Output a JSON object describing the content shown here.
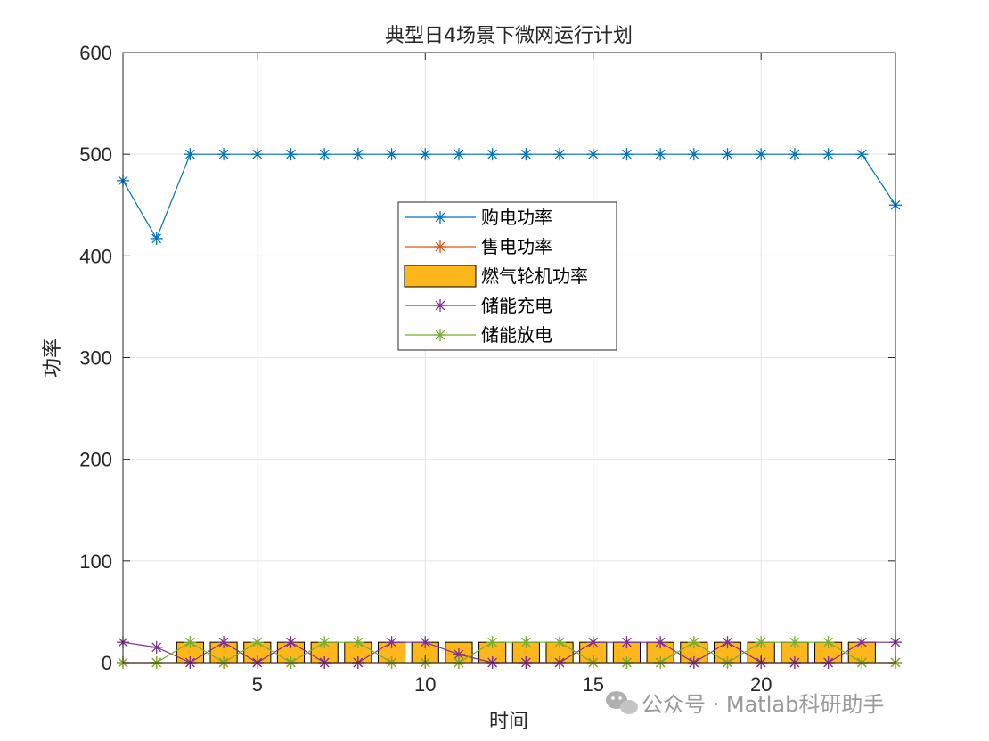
{
  "chart_data": {
    "type": "line",
    "title": "典型日4场景下微网运行计划",
    "xlabel": "时间",
    "ylabel": "功率",
    "xlim": [
      1,
      24
    ],
    "ylim": [
      0,
      600
    ],
    "xticks": [
      5,
      10,
      15,
      20
    ],
    "yticks": [
      0,
      100,
      200,
      300,
      400,
      500,
      600
    ],
    "grid": true,
    "legend_position": "center",
    "x": [
      1,
      2,
      3,
      4,
      5,
      6,
      7,
      8,
      9,
      10,
      11,
      12,
      13,
      14,
      15,
      16,
      17,
      18,
      19,
      20,
      21,
      22,
      23,
      24
    ],
    "series": [
      {
        "name": "购电功率",
        "kind": "line",
        "marker": "asterisk",
        "color": "#0072BD",
        "values": [
          474,
          417,
          500,
          500,
          500,
          500,
          500,
          500,
          500,
          500,
          500,
          500,
          500,
          500,
          500,
          500,
          500,
          500,
          500,
          500,
          500,
          500,
          500,
          450
        ]
      },
      {
        "name": "售电功率",
        "kind": "line",
        "marker": "asterisk",
        "color": "#D95319",
        "values": [
          0,
          0,
          0,
          0,
          0,
          0,
          0,
          0,
          0,
          0,
          0,
          0,
          0,
          0,
          0,
          0,
          0,
          0,
          0,
          0,
          0,
          0,
          0,
          0
        ]
      },
      {
        "name": "燃气轮机功率",
        "kind": "bar",
        "color": "#FDB71A",
        "values": [
          0,
          0,
          20,
          20,
          20,
          20,
          20,
          20,
          20,
          20,
          20,
          20,
          20,
          20,
          20,
          20,
          20,
          20,
          20,
          20,
          20,
          20,
          20,
          0
        ]
      },
      {
        "name": "储能充电",
        "kind": "line",
        "marker": "asterisk",
        "color": "#7E2F8E",
        "values": [
          20,
          15,
          0,
          20,
          0,
          20,
          0,
          0,
          20,
          20,
          8,
          0,
          0,
          0,
          20,
          20,
          20,
          0,
          20,
          0,
          0,
          0,
          20,
          20
        ]
      },
      {
        "name": "储能放电",
        "kind": "line",
        "marker": "asterisk",
        "color": "#77AC30",
        "values": [
          0,
          0,
          20,
          0,
          20,
          0,
          20,
          20,
          0,
          0,
          0,
          20,
          20,
          20,
          0,
          0,
          0,
          20,
          0,
          20,
          20,
          20,
          0,
          0
        ]
      }
    ]
  },
  "watermark": {
    "text": "公众号 · Matlab科研助手",
    "icon": "wechat-icon"
  }
}
